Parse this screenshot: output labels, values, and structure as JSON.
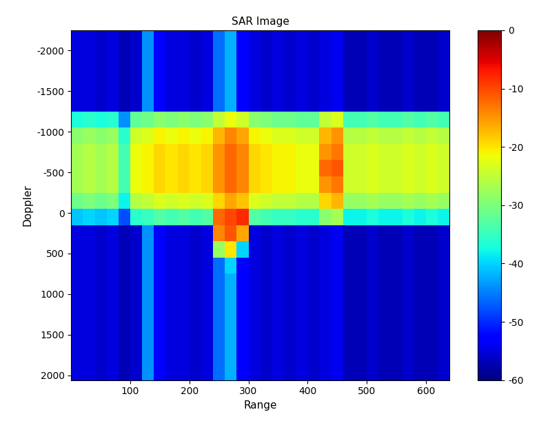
{
  "chart_data": {
    "type": "heatmap",
    "title": "SAR Image",
    "x_label": "Range",
    "y_label": "Doppler",
    "x": [
      10,
      30,
      50,
      70,
      90,
      110,
      130,
      150,
      170,
      190,
      210,
      230,
      250,
      270,
      290,
      310,
      330,
      350,
      370,
      390,
      410,
      430,
      450,
      470,
      490,
      510,
      530,
      550,
      570,
      590,
      610,
      630
    ],
    "y": [
      -2150,
      -1950,
      -1750,
      -1550,
      -1350,
      -1150,
      -950,
      -750,
      -550,
      -350,
      -150,
      50,
      250,
      450,
      650,
      850,
      1050,
      1250,
      1450,
      1650,
      1850,
      2050
    ],
    "cells": [
      [
        -55,
        -55,
        -56,
        -55,
        -57,
        -56,
        -44,
        -53,
        -55,
        -55,
        -56,
        -55,
        -46,
        -42,
        -53,
        -55,
        -56,
        -55,
        -56,
        -55,
        -56,
        -55,
        -54,
        -57,
        -57,
        -56,
        -57,
        -57,
        -56,
        -57,
        -57,
        -56
      ],
      [
        -55,
        -55,
        -56,
        -55,
        -57,
        -56,
        -44,
        -53,
        -55,
        -55,
        -56,
        -55,
        -46,
        -42,
        -53,
        -55,
        -56,
        -55,
        -56,
        -55,
        -56,
        -55,
        -54,
        -57,
        -57,
        -56,
        -57,
        -57,
        -56,
        -57,
        -57,
        -56
      ],
      [
        -55,
        -55,
        -56,
        -55,
        -57,
        -56,
        -44,
        -53,
        -55,
        -55,
        -56,
        -55,
        -46,
        -42,
        -53,
        -55,
        -56,
        -55,
        -56,
        -55,
        -56,
        -55,
        -54,
        -57,
        -57,
        -56,
        -57,
        -57,
        -56,
        -57,
        -57,
        -56
      ],
      [
        -55,
        -55,
        -56,
        -55,
        -57,
        -56,
        -44,
        -53,
        -55,
        -55,
        -56,
        -55,
        -46,
        -42,
        -53,
        -55,
        -56,
        -55,
        -56,
        -55,
        -56,
        -55,
        -54,
        -57,
        -57,
        -56,
        -57,
        -57,
        -56,
        -57,
        -57,
        -56
      ],
      [
        -55,
        -55,
        -56,
        -55,
        -57,
        -56,
        -44,
        -53,
        -55,
        -55,
        -56,
        -55,
        -46,
        -42,
        -53,
        -55,
        -56,
        -55,
        -56,
        -55,
        -56,
        -55,
        -54,
        -57,
        -57,
        -56,
        -57,
        -57,
        -56,
        -57,
        -57,
        -56
      ],
      [
        -37,
        -36,
        -37,
        -36,
        -44,
        -32,
        -31,
        -29,
        -30,
        -29,
        -30,
        -29,
        -25,
        -22,
        -24,
        -29,
        -30,
        -31,
        -31,
        -32,
        -32,
        -25,
        -23,
        -34,
        -34,
        -33,
        -34,
        -34,
        -33,
        -34,
        -33,
        -34
      ],
      [
        -29,
        -28,
        -29,
        -28,
        -36,
        -24,
        -23,
        -21,
        -22,
        -21,
        -22,
        -21,
        -17,
        -14,
        -16,
        -21,
        -22,
        -23,
        -23,
        -24,
        -24,
        -17,
        -15,
        -26,
        -26,
        -25,
        -26,
        -26,
        -25,
        -26,
        -25,
        -26
      ],
      [
        -27,
        -26,
        -27,
        -26,
        -34,
        -22,
        -21,
        -19,
        -20,
        -19,
        -20,
        -19,
        -15,
        -12,
        -14,
        -19,
        -20,
        -21,
        -21,
        -22,
        -22,
        -15,
        -13,
        -24,
        -24,
        -23,
        -24,
        -24,
        -23,
        -24,
        -23,
        -24
      ],
      [
        -27,
        -26,
        -27,
        -26,
        -34,
        -22,
        -21,
        -19,
        -20,
        -19,
        -20,
        -19,
        -15,
        -12,
        -14,
        -19,
        -20,
        -21,
        -21,
        -22,
        -22,
        -12,
        -11,
        -24,
        -24,
        -23,
        -24,
        -24,
        -23,
        -24,
        -23,
        -24
      ],
      [
        -27,
        -26,
        -27,
        -26,
        -34,
        -22,
        -21,
        -19,
        -20,
        -19,
        -20,
        -19,
        -15,
        -12,
        -14,
        -19,
        -20,
        -21,
        -21,
        -22,
        -22,
        -15,
        -13,
        -24,
        -24,
        -23,
        -24,
        -24,
        -23,
        -24,
        -23,
        -24
      ],
      [
        -31,
        -30,
        -31,
        -30,
        -38,
        -26,
        -25,
        -23,
        -24,
        -23,
        -24,
        -23,
        -19,
        -16,
        -18,
        -23,
        -24,
        -25,
        -25,
        -26,
        -26,
        -19,
        -17,
        -28,
        -28,
        -27,
        -28,
        -28,
        -27,
        -28,
        -27,
        -28
      ],
      [
        -41,
        -40,
        -41,
        -40,
        -48,
        -36,
        -35,
        -33,
        -34,
        -33,
        -34,
        -33,
        -12,
        -10,
        -8,
        -33,
        -34,
        -35,
        -35,
        -36,
        -36,
        -29,
        -27,
        -38,
        -38,
        -37,
        -38,
        -38,
        -37,
        -38,
        -37,
        -38
      ],
      [
        -55,
        -55,
        -56,
        -55,
        -57,
        -56,
        -44,
        -53,
        -55,
        -55,
        -56,
        -55,
        -14,
        -11,
        -16,
        -55,
        -56,
        -55,
        -56,
        -55,
        -56,
        -55,
        -54,
        -57,
        -57,
        -56,
        -57,
        -57,
        -56,
        -57,
        -57,
        -56
      ],
      [
        -55,
        -55,
        -56,
        -55,
        -57,
        -56,
        -44,
        -53,
        -55,
        -55,
        -56,
        -55,
        -28,
        -20,
        -40,
        -55,
        -56,
        -55,
        -56,
        -55,
        -56,
        -55,
        -54,
        -57,
        -57,
        -56,
        -57,
        -57,
        -56,
        -57,
        -57,
        -56
      ],
      [
        -55,
        -55,
        -56,
        -55,
        -57,
        -56,
        -44,
        -53,
        -55,
        -55,
        -56,
        -55,
        -46,
        -40,
        -53,
        -55,
        -56,
        -55,
        -56,
        -55,
        -56,
        -55,
        -54,
        -57,
        -57,
        -56,
        -57,
        -57,
        -56,
        -57,
        -57,
        -56
      ],
      [
        -55,
        -55,
        -56,
        -55,
        -57,
        -56,
        -44,
        -53,
        -55,
        -55,
        -56,
        -55,
        -46,
        -42,
        -53,
        -55,
        -56,
        -55,
        -56,
        -55,
        -56,
        -55,
        -54,
        -57,
        -57,
        -56,
        -57,
        -57,
        -56,
        -57,
        -57,
        -56
      ],
      [
        -55,
        -55,
        -56,
        -55,
        -57,
        -56,
        -44,
        -53,
        -55,
        -55,
        -56,
        -55,
        -46,
        -42,
        -53,
        -55,
        -56,
        -55,
        -56,
        -55,
        -56,
        -55,
        -54,
        -57,
        -57,
        -56,
        -57,
        -57,
        -56,
        -57,
        -57,
        -56
      ],
      [
        -55,
        -55,
        -56,
        -55,
        -57,
        -56,
        -44,
        -53,
        -55,
        -55,
        -56,
        -55,
        -46,
        -42,
        -53,
        -55,
        -56,
        -55,
        -56,
        -55,
        -56,
        -55,
        -54,
        -57,
        -57,
        -56,
        -57,
        -57,
        -56,
        -57,
        -57,
        -56
      ],
      [
        -55,
        -55,
        -56,
        -55,
        -57,
        -56,
        -44,
        -53,
        -55,
        -55,
        -56,
        -55,
        -46,
        -42,
        -53,
        -55,
        -56,
        -55,
        -56,
        -55,
        -56,
        -55,
        -54,
        -57,
        -57,
        -56,
        -57,
        -57,
        -56,
        -57,
        -57,
        -56
      ],
      [
        -55,
        -55,
        -56,
        -55,
        -57,
        -56,
        -44,
        -53,
        -55,
        -55,
        -56,
        -55,
        -46,
        -42,
        -53,
        -55,
        -56,
        -55,
        -56,
        -55,
        -56,
        -55,
        -54,
        -57,
        -57,
        -56,
        -57,
        -57,
        -56,
        -57,
        -57,
        -56
      ],
      [
        -55,
        -55,
        -56,
        -55,
        -57,
        -56,
        -44,
        -53,
        -55,
        -55,
        -56,
        -55,
        -46,
        -42,
        -53,
        -55,
        -56,
        -55,
        -56,
        -55,
        -56,
        -55,
        -54,
        -57,
        -57,
        -56,
        -57,
        -57,
        -56,
        -57,
        -57,
        -56
      ],
      [
        -55,
        -55,
        -56,
        -55,
        -57,
        -56,
        -44,
        -53,
        -55,
        -55,
        -56,
        -55,
        -46,
        -42,
        -53,
        -55,
        -56,
        -55,
        -56,
        -55,
        -56,
        -55,
        -54,
        -57,
        -57,
        -56,
        -57,
        -57,
        -56,
        -57,
        -57,
        -56
      ]
    ],
    "xlim": [
      0,
      640
    ],
    "xticks": [
      100,
      200,
      300,
      400,
      500,
      600
    ],
    "ylim": [
      2060,
      -2250
    ],
    "yticks": [
      -2000,
      -1500,
      -1000,
      -500,
      0,
      500,
      1000,
      1500,
      2000
    ],
    "color_range": [
      -60,
      0
    ],
    "color_ticks": [
      0,
      -10,
      -20,
      -30,
      -40,
      -50,
      -60
    ],
    "grid": false
  }
}
